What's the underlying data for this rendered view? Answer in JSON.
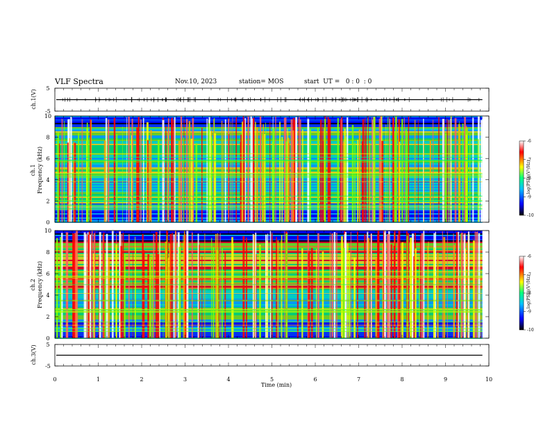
{
  "header": {
    "title": "VLF Spectra",
    "date": "Nov.10, 2023",
    "station": "station= MOS",
    "start": "start  UT =   0 : 0  : 0"
  },
  "chart_data": [
    {
      "type": "line",
      "panel": "ch1-waveform",
      "ylabel": "ch.1(V)",
      "yticks": [
        "5",
        "-5"
      ],
      "ylim": [
        -5,
        5
      ],
      "baseline_value": 0
    },
    {
      "type": "heatmap",
      "panel": "ch1-spectrogram",
      "ylabel_top": "ch.1",
      "ylabel": "Frequency (kHz)",
      "ylim": [
        0,
        10
      ],
      "yticks": [
        "0",
        "2",
        "4",
        "6",
        "8",
        "10"
      ],
      "colorbar": {
        "label": "log(PSD)(V²/Hz)",
        "range": [
          -10,
          -6
        ],
        "ticks": [
          "-6",
          "-7",
          "-8",
          "-9",
          "-10"
        ],
        "colors": [
          "#000000",
          "#0000ff",
          "#00c0ff",
          "#00ff80",
          "#ffff00",
          "#ff0000",
          "#ffffff"
        ]
      }
    },
    {
      "type": "heatmap",
      "panel": "ch2-spectrogram",
      "ylabel_top": "ch.2",
      "ylabel": "Frequency (kHz)",
      "ylim": [
        0,
        10
      ],
      "yticks": [
        "0",
        "2",
        "4",
        "6",
        "8",
        "10"
      ],
      "colorbar": {
        "label": "log(PSD)(V²/Hz)",
        "range": [
          -10,
          -6
        ],
        "ticks": [
          "-6",
          "-7",
          "-8",
          "-9",
          "-10"
        ],
        "colors": [
          "#000000",
          "#0000ff",
          "#00c0ff",
          "#00ff80",
          "#ffff00",
          "#ff0000",
          "#ffffff"
        ]
      }
    },
    {
      "type": "line",
      "panel": "ch3-waveform",
      "ylabel": "ch.3(V)",
      "yticks": [
        "5",
        "-5"
      ],
      "ylim": [
        -5,
        5
      ],
      "baseline_value": 0
    }
  ],
  "xaxis": {
    "label": "Time (min)",
    "ticks": [
      "0",
      "1",
      "2",
      "3",
      "4",
      "5",
      "6",
      "7",
      "8",
      "9",
      "10"
    ],
    "xlim": [
      0,
      10
    ],
    "data_end": 9.85
  }
}
